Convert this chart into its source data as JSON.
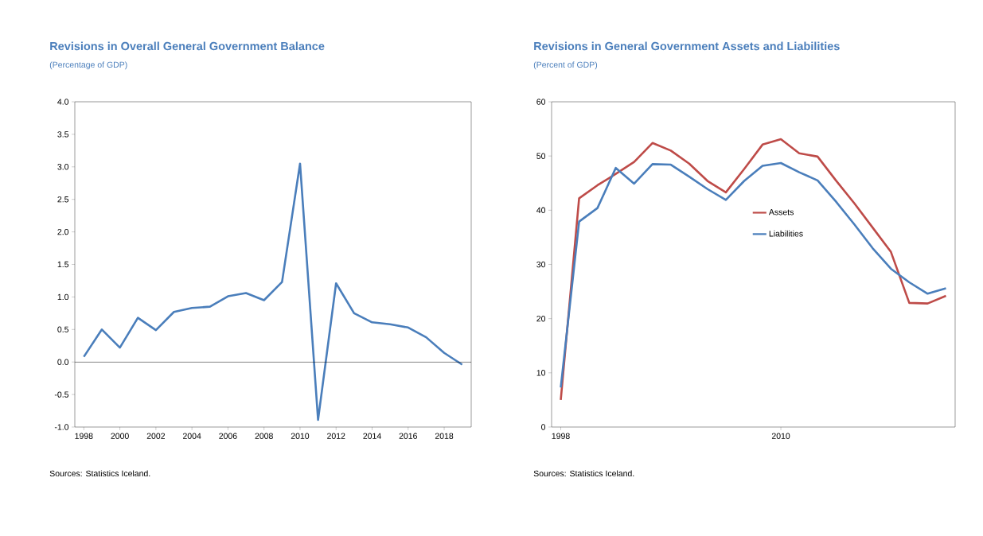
{
  "chart_data": [
    {
      "type": "line",
      "title": "Revisions in Overall General Government Balance",
      "subtitle": "(Percentage of GDP)",
      "annotations": [
        "Sources: Statistics Iceland."
      ],
      "x": [
        1998,
        1999,
        2000,
        2001,
        2002,
        2003,
        2004,
        2005,
        2006,
        2007,
        2008,
        2009,
        2010,
        2011,
        2012,
        2013,
        2014,
        2015,
        2016,
        2017,
        2018,
        2019
      ],
      "values": [
        0.08,
        0.5,
        0.22,
        0.68,
        0.49,
        0.77,
        0.83,
        0.85,
        1.01,
        1.06,
        0.95,
        1.23,
        3.05,
        -0.89,
        1.21,
        0.75,
        0.61,
        0.58,
        0.53,
        0.38,
        0.14,
        -0.04
      ],
      "color": "#4a7ebb",
      "xlim": [
        1997.5,
        2019.5
      ],
      "xticks": [
        1998,
        2000,
        2002,
        2004,
        2006,
        2008,
        2010,
        2012,
        2014,
        2016,
        2018
      ],
      "ylim": [
        -1.0,
        4.0
      ],
      "yticks": [
        {
          "value": -1.0,
          "label": "-1.0"
        },
        {
          "value": -0.5,
          "label": "-0.5"
        },
        {
          "value": 0,
          "label": "0.0"
        },
        {
          "value": 0.5,
          "label": "0.5"
        },
        {
          "value": 1.0,
          "label": "1.0"
        },
        {
          "value": 1.5,
          "label": "1.5"
        },
        {
          "value": 2.0,
          "label": "2.0"
        },
        {
          "value": 2.5,
          "label": "2.5"
        },
        {
          "value": 3.0,
          "label": "3.0"
        },
        {
          "value": 3.5,
          "label": "3.5"
        },
        {
          "value": 4.0,
          "label": "4.0"
        }
      ],
      "ref_lines": [
        {
          "axis": "y",
          "value": 0,
          "color": "#000000"
        }
      ],
      "grid": false
    },
    {
      "type": "line",
      "title": "Revisions in General Government Assets and Liabilities",
      "subtitle": "(Percent of GDP)",
      "annotations": [
        "Sources: Statistics Iceland."
      ],
      "x": [
        1998,
        1999,
        2000,
        2001,
        2002,
        2003,
        2004,
        2005,
        2006,
        2007,
        2008,
        2009,
        2010,
        2011,
        2012,
        2013,
        2014,
        2015,
        2016,
        2017,
        2018,
        2019
      ],
      "series": [
        {
          "name": "Assets",
          "color": "#be4b48",
          "values": [
            5.0,
            42.2,
            44.6,
            46.7,
            48.9,
            52.4,
            51.0,
            48.6,
            45.4,
            43.3,
            47.6,
            52.1,
            53.1,
            50.5,
            49.9,
            45.5,
            41.3,
            36.8,
            32.3,
            22.9,
            22.8,
            24.2
          ]
        },
        {
          "name": "Liabilities",
          "color": "#4a7ebb",
          "values": [
            7.3,
            37.9,
            40.4,
            47.8,
            44.9,
            48.5,
            48.4,
            46.2,
            43.9,
            41.9,
            45.4,
            48.2,
            48.7,
            47.0,
            45.5,
            41.6,
            37.4,
            33.0,
            29.2,
            26.7,
            24.6,
            25.6
          ]
        }
      ],
      "xlim": [
        1997.5,
        2019.5
      ],
      "xticks": [
        1998,
        2010
      ],
      "ylim": [
        0,
        60
      ],
      "yticks": [
        0,
        10,
        20,
        30,
        40,
        50,
        60
      ],
      "legend": "center",
      "grid": false
    }
  ]
}
